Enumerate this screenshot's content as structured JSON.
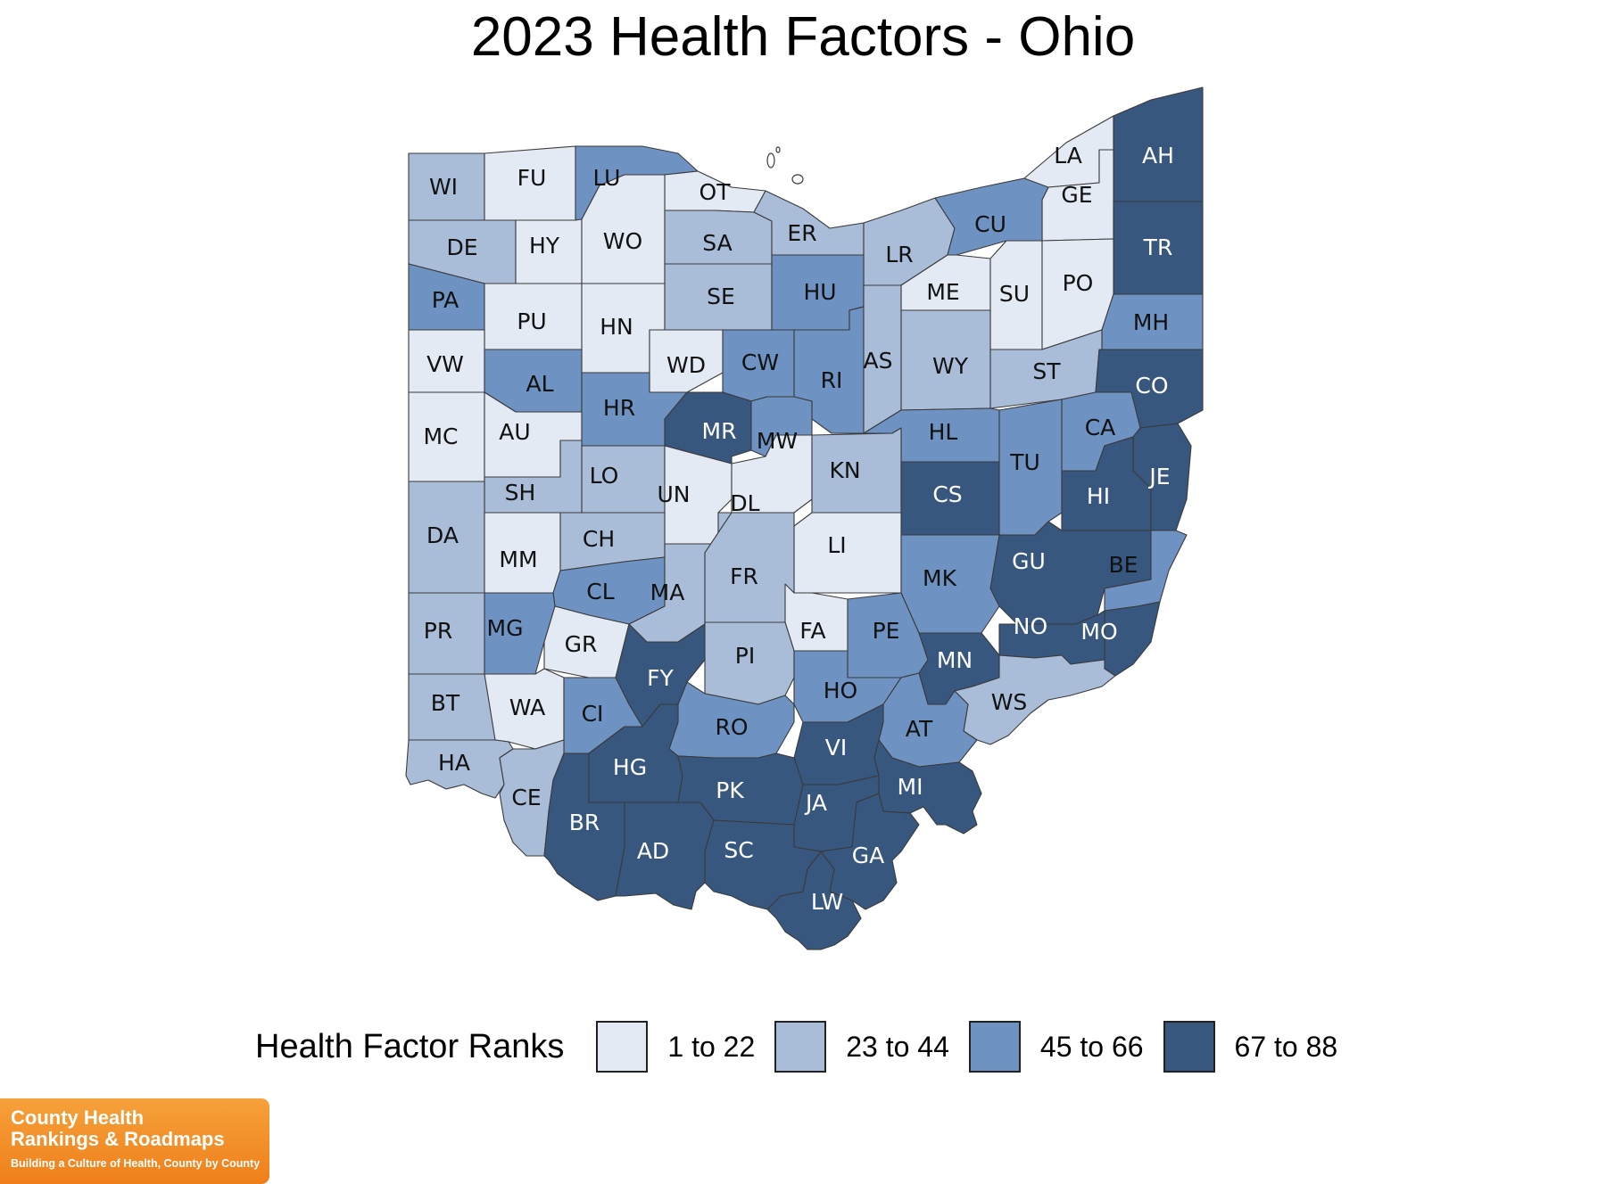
{
  "title": "2023 Health Factors - Ohio",
  "legend": {
    "title": "Health Factor Ranks",
    "bins": [
      {
        "label": "1 to 22",
        "color": "#e3eaf4"
      },
      {
        "label": "23 to 44",
        "color": "#a9bdd9"
      },
      {
        "label": "45 to 66",
        "color": "#6e93c3"
      },
      {
        "label": "67 to 88",
        "color": "#37577f"
      }
    ]
  },
  "counties": [
    {
      "abbr": "WI",
      "bin": 1
    },
    {
      "abbr": "FU",
      "bin": 0
    },
    {
      "abbr": "LU",
      "bin": 2
    },
    {
      "abbr": "OT",
      "bin": 0
    },
    {
      "abbr": "LA",
      "bin": 0
    },
    {
      "abbr": "AH",
      "bin": 3
    },
    {
      "abbr": "GE",
      "bin": 0
    },
    {
      "abbr": "DE",
      "bin": 1
    },
    {
      "abbr": "HY",
      "bin": 0
    },
    {
      "abbr": "WO",
      "bin": 0
    },
    {
      "abbr": "SA",
      "bin": 1
    },
    {
      "abbr": "ER",
      "bin": 1
    },
    {
      "abbr": "LR",
      "bin": 1
    },
    {
      "abbr": "CU",
      "bin": 2
    },
    {
      "abbr": "TR",
      "bin": 3
    },
    {
      "abbr": "PA",
      "bin": 2
    },
    {
      "abbr": "PU",
      "bin": 0
    },
    {
      "abbr": "HN",
      "bin": 0
    },
    {
      "abbr": "SE",
      "bin": 1
    },
    {
      "abbr": "HU",
      "bin": 2
    },
    {
      "abbr": "ME",
      "bin": 0
    },
    {
      "abbr": "SU",
      "bin": 0
    },
    {
      "abbr": "PO",
      "bin": 0
    },
    {
      "abbr": "MH",
      "bin": 2
    },
    {
      "abbr": "VW",
      "bin": 0
    },
    {
      "abbr": "AL",
      "bin": 2
    },
    {
      "abbr": "WD",
      "bin": 0
    },
    {
      "abbr": "CW",
      "bin": 2
    },
    {
      "abbr": "RI",
      "bin": 2
    },
    {
      "abbr": "AS",
      "bin": 1
    },
    {
      "abbr": "WY",
      "bin": 1
    },
    {
      "abbr": "ST",
      "bin": 1
    },
    {
      "abbr": "CO",
      "bin": 3
    },
    {
      "abbr": "MC",
      "bin": 0
    },
    {
      "abbr": "AU",
      "bin": 0
    },
    {
      "abbr": "HR",
      "bin": 2
    },
    {
      "abbr": "MR",
      "bin": 3
    },
    {
      "abbr": "MW",
      "bin": 2
    },
    {
      "abbr": "HL",
      "bin": 2
    },
    {
      "abbr": "CA",
      "bin": 2
    },
    {
      "abbr": "JE",
      "bin": 3
    },
    {
      "abbr": "SH",
      "bin": 1
    },
    {
      "abbr": "LO",
      "bin": 1
    },
    {
      "abbr": "UN",
      "bin": 0
    },
    {
      "abbr": "DL",
      "bin": 0
    },
    {
      "abbr": "KN",
      "bin": 1
    },
    {
      "abbr": "CS",
      "bin": 3
    },
    {
      "abbr": "TU",
      "bin": 2
    },
    {
      "abbr": "HI",
      "bin": 3
    },
    {
      "abbr": "DA",
      "bin": 1
    },
    {
      "abbr": "MM",
      "bin": 0
    },
    {
      "abbr": "CH",
      "bin": 1
    },
    {
      "abbr": "LI",
      "bin": 0
    },
    {
      "abbr": "GU",
      "bin": 3
    },
    {
      "abbr": "BE",
      "bin": 2
    },
    {
      "abbr": "CL",
      "bin": 2
    },
    {
      "abbr": "MA",
      "bin": 1
    },
    {
      "abbr": "FR",
      "bin": 1
    },
    {
      "abbr": "MK",
      "bin": 2
    },
    {
      "abbr": "PR",
      "bin": 1
    },
    {
      "abbr": "MG",
      "bin": 2
    },
    {
      "abbr": "GR",
      "bin": 0
    },
    {
      "abbr": "FA",
      "bin": 0
    },
    {
      "abbr": "PE",
      "bin": 2
    },
    {
      "abbr": "NO",
      "bin": 3
    },
    {
      "abbr": "MO",
      "bin": 3
    },
    {
      "abbr": "FY",
      "bin": 3
    },
    {
      "abbr": "PI",
      "bin": 1
    },
    {
      "abbr": "MN",
      "bin": 3
    },
    {
      "abbr": "BT",
      "bin": 1
    },
    {
      "abbr": "WA",
      "bin": 0
    },
    {
      "abbr": "CI",
      "bin": 2
    },
    {
      "abbr": "HO",
      "bin": 2
    },
    {
      "abbr": "WS",
      "bin": 1
    },
    {
      "abbr": "RO",
      "bin": 2
    },
    {
      "abbr": "AT",
      "bin": 2
    },
    {
      "abbr": "HA",
      "bin": 1
    },
    {
      "abbr": "HG",
      "bin": 3
    },
    {
      "abbr": "VI",
      "bin": 3
    },
    {
      "abbr": "CE",
      "bin": 1
    },
    {
      "abbr": "PK",
      "bin": 3
    },
    {
      "abbr": "MI",
      "bin": 3
    },
    {
      "abbr": "JA",
      "bin": 3
    },
    {
      "abbr": "BR",
      "bin": 3
    },
    {
      "abbr": "AD",
      "bin": 3
    },
    {
      "abbr": "SC",
      "bin": 3
    },
    {
      "abbr": "GA",
      "bin": 3
    },
    {
      "abbr": "LW",
      "bin": 3
    }
  ],
  "badge": {
    "line1": "County Health",
    "line2": "Rankings & Roadmaps",
    "tagline": "Building a Culture of Health, County by County"
  }
}
